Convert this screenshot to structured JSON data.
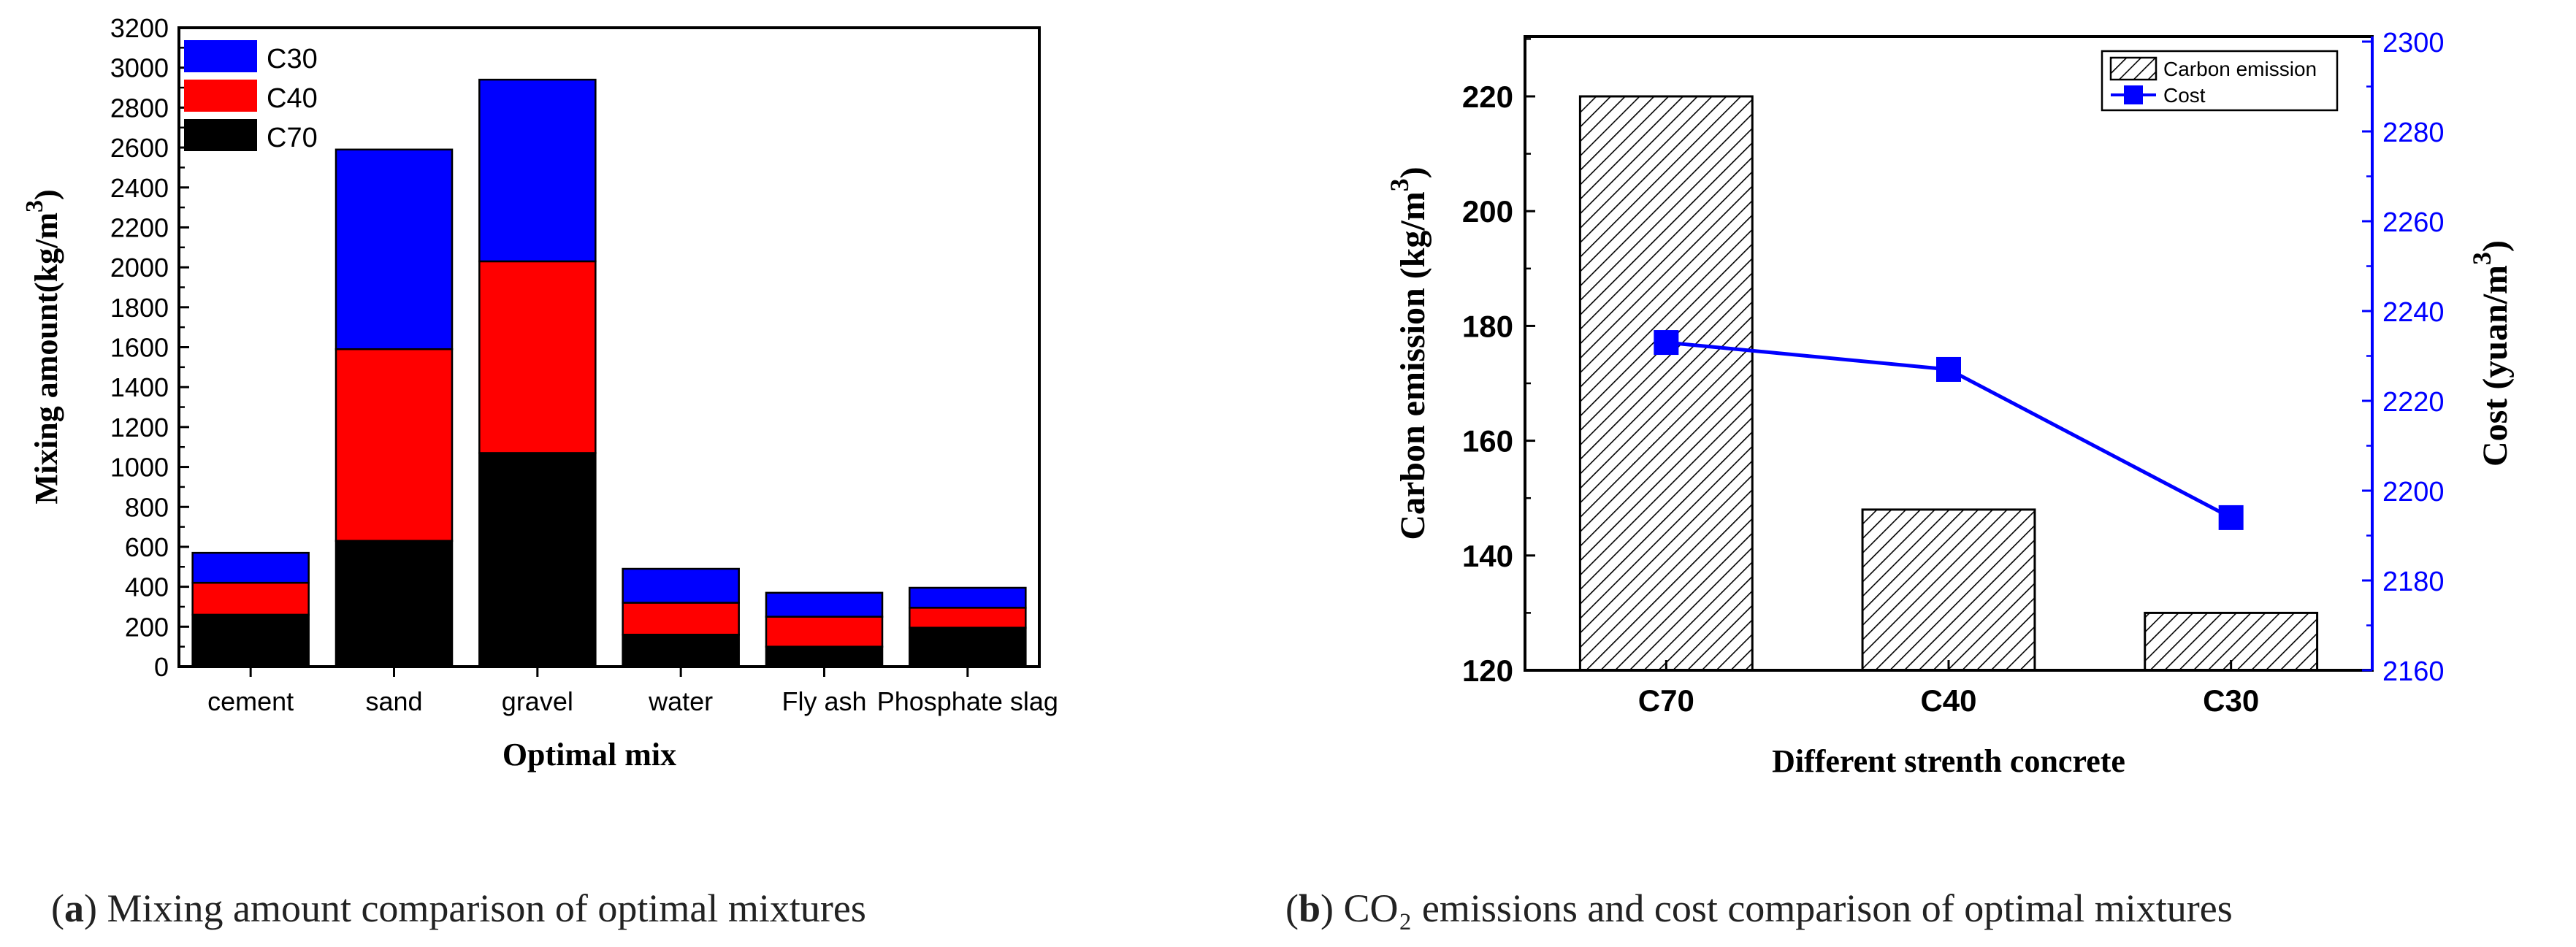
{
  "chart_data": [
    {
      "type": "bar",
      "stacked": true,
      "caption_label": "a",
      "caption_text": "Mixing amount comparison of optimal mixtures",
      "xlabel": "Optimal mix",
      "ylabel_main": "Mixing amount(kg/m",
      "ylabel_sup": "3",
      "ylabel_end": ")",
      "ylim": [
        0,
        3200
      ],
      "yticks": [
        "0",
        "200",
        "400",
        "600",
        "800",
        "1000",
        "1200",
        "1400",
        "1600",
        "1800",
        "2000",
        "2200",
        "2400",
        "2600",
        "2800",
        "3000",
        "3200"
      ],
      "categories": [
        "cement",
        "sand",
        "gravel",
        "water",
        "Fly ash",
        "Phosphate slag"
      ],
      "series": [
        {
          "name": "C70",
          "color": "#000000",
          "values": [
            260,
            630,
            1070,
            160,
            100,
            195
          ]
        },
        {
          "name": "C40",
          "color": "#ff0000",
          "values": [
            160,
            960,
            960,
            160,
            150,
            100
          ]
        },
        {
          "name": "C30",
          "color": "#0000ff",
          "values": [
            150,
            1000,
            910,
            170,
            120,
            100
          ]
        }
      ],
      "legend": [
        "C30",
        "C40",
        "C70"
      ],
      "legend_position": "top-left"
    },
    {
      "type": "bar+line",
      "caption_label": "b",
      "caption_text": "CO₂ emissions and cost comparison of optimal mixtures",
      "xlabel": "Different strenth concrete",
      "ylabel_left_main": "Carbon emission (kg/m",
      "ylabel_left_sup": "3",
      "ylabel_left_end": ")",
      "ylabel_right_main": "Cost (yuan/m",
      "ylabel_right_sup": "3",
      "ylabel_right_end": ")",
      "categories": [
        "C70",
        "C40",
        "C30"
      ],
      "bar_series": {
        "name": "Carbon emission",
        "values": [
          220,
          148,
          130
        ]
      },
      "line_series": {
        "name": "Cost",
        "color": "#0000ff",
        "values": [
          2233,
          2227,
          2194
        ]
      },
      "ylim_left": [
        120,
        230
      ],
      "yticks_left": [
        "120",
        "140",
        "160",
        "180",
        "200",
        "220"
      ],
      "ylim_right": [
        2160,
        2300
      ],
      "yticks_right": [
        "2160",
        "2180",
        "2200",
        "2220",
        "2240",
        "2260",
        "2280",
        "2300"
      ],
      "legend_position": "top-right"
    }
  ]
}
